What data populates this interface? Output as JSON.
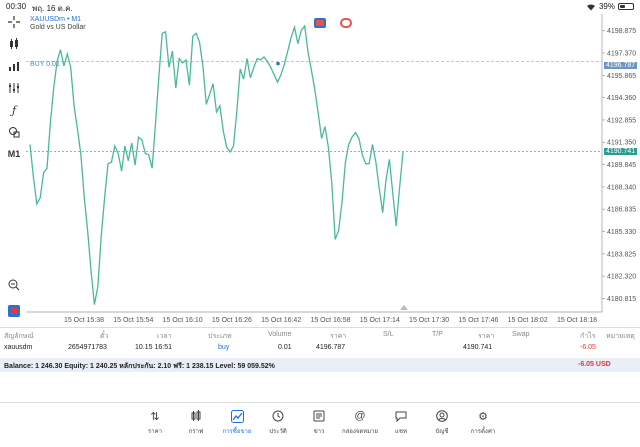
{
  "status_bar": {
    "time": "00:30",
    "date": "พฤ. 16 ต.ค.",
    "battery": "39%",
    "battery_level": 0.39
  },
  "toolbar": {
    "icons": [
      "crosshair-icon",
      "candles-icon",
      "bars-icon",
      "indicators-icon",
      "function-icon",
      "objects-icon"
    ],
    "timeframe": "M1"
  },
  "chart": {
    "symbol_line": "XAUUSDm • M1",
    "description": "Gold vs US Dollar",
    "buy_label": "BUY 0.01",
    "buy_price": "4196.787",
    "bid_price": "4190.741",
    "line_color": "#4ab89a",
    "bid_color": "#2a9d8f",
    "buy_color": "#6c95c4"
  },
  "chart_data": {
    "type": "line",
    "y_ticks": [
      "4198.875",
      "4197.370",
      "4195.865",
      "4194.360",
      "4192.855",
      "4191.350",
      "4189.845",
      "4188.340",
      "4186.835",
      "4185.330",
      "4183.825",
      "4182.320",
      "4180.815"
    ],
    "x_ticks": [
      "15 Oct 15:38",
      "15 Oct 15:54",
      "15 Oct 16:10",
      "15 Oct 16:26",
      "15 Oct 16:42",
      "15 Oct 16:58",
      "15 Oct 17:14",
      "15 Oct 17:30",
      "15 Oct 17:46",
      "15 Oct 18:02",
      "15 Oct 18:18"
    ],
    "ylim": [
      4179.9,
      4200.0
    ],
    "series": [
      {
        "values": [
          4191.2,
          4189.0,
          4187.2,
          4187.6,
          4189.3,
          4189.6,
          4192.6,
          4195.0,
          4196.8,
          4197.6,
          4196.5,
          4197.3,
          4196.4,
          4193.8,
          4192.2,
          4190.5,
          4187.6,
          4185.4,
          4182.7,
          4180.4,
          4181.6,
          4185.0,
          4187.6,
          4189.9,
          4190.0,
          4191.1,
          4190.6,
          4189.4,
          4191.1,
          4190.1,
          4191.3,
          4189.8,
          4191.7,
          4191.5,
          4190.6,
          4190.5,
          4189.6,
          4192.6,
          4195.8,
          4198.7,
          4198.8,
          4196.4,
          4197.5,
          4195.0,
          4197.0,
          4196.7,
          4196.9,
          4195.2,
          4198.5,
          4198.7,
          4198.1,
          4196.5,
          4193.9,
          4194.6,
          4195.3,
          4193.4,
          4193.8,
          4192.1,
          4191.0,
          4190.7,
          4191.1,
          4193.4,
          4196.3,
          4195.6,
          4197.0,
          4195.7,
          4196.4,
          4197.0,
          4196.9,
          4197.1,
          4196.8,
          4196.4,
          4195.9,
          4195.4,
          4195.9,
          4196.6,
          4197.5,
          4198.4,
          4199.1,
          4198.0,
          4198.9,
          4199.2,
          4197.4,
          4196.2,
          4194.9,
          4193.3,
          4191.6,
          4192.4,
          4191.0,
          4188.6,
          4184.8,
          4185.4,
          4187.3,
          4190.0,
          4191.2,
          4191.7,
          4192.0,
          4191.6,
          4190.5,
          4189.9,
          4189.9,
          4191.2,
          4190.0,
          4188.2,
          4186.6,
          4188.8,
          4190.2,
          4187.9,
          4185.7,
          4188.3,
          4190.7
        ]
      }
    ]
  },
  "positions_table": {
    "headers": [
      "สัญลักษณ์",
      "ตั๋ว",
      "เวลา",
      "ประเภท",
      "Volume",
      "ราคา",
      "S/L",
      "T/P",
      "ราคา",
      "Swap",
      "กำไร",
      "หมายเหตุ"
    ],
    "row": {
      "symbol": "xauusdm",
      "ticket": "2654971783",
      "time": "10.15 16:51",
      "type": "buy",
      "volume": "0.01",
      "open_price": "4196.787",
      "current_price": "4190.741",
      "profit": "-6.05"
    },
    "balance_text": "Balance: 1 246.30 Equity: 1 240.25 หลักประกัน: 2.10 ฟรี: 1 238.15 Level: 59 059.52%",
    "total_profit": "-6.05  USD"
  },
  "tabbar": {
    "tabs": [
      {
        "label": "ราคา",
        "icon": "quotes-icon"
      },
      {
        "label": "กราฟ",
        "icon": "chart-icon"
      },
      {
        "label": "การซื้อขาย",
        "icon": "trade-icon"
      },
      {
        "label": "ประวัติ",
        "icon": "history-icon"
      },
      {
        "label": "ข่าว",
        "icon": "news-icon"
      },
      {
        "label": "กล่องจดหมาย",
        "icon": "mailbox-icon"
      },
      {
        "label": "แชท",
        "icon": "chat-icon"
      },
      {
        "label": "บัญชี",
        "icon": "account-icon"
      },
      {
        "label": "การตั้งค่า",
        "icon": "settings-icon"
      }
    ],
    "active_index": 2
  }
}
